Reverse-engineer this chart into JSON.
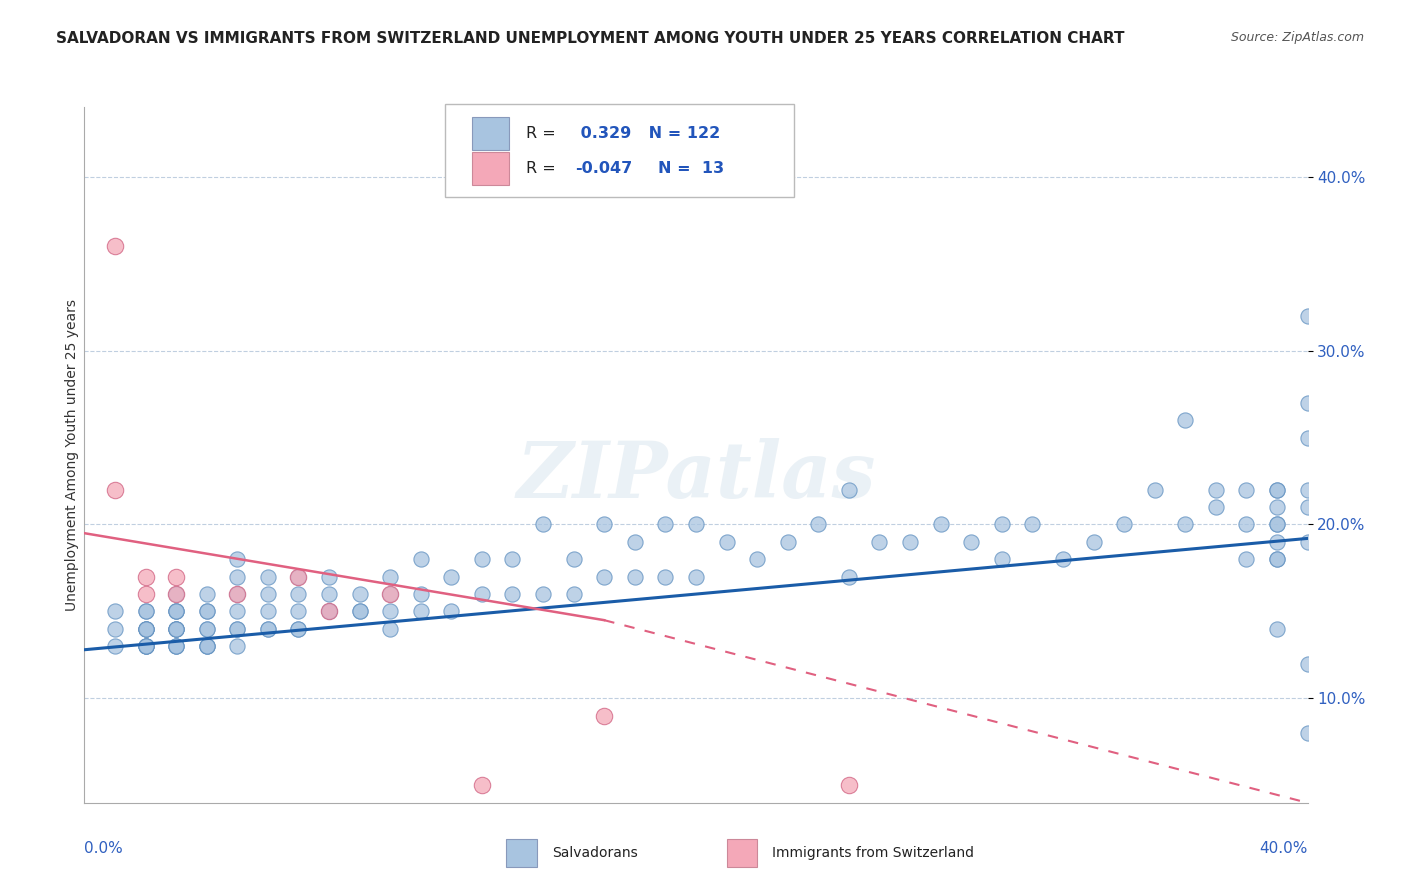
{
  "title": "SALVADORAN VS IMMIGRANTS FROM SWITZERLAND UNEMPLOYMENT AMONG YOUTH UNDER 25 YEARS CORRELATION CHART",
  "source": "Source: ZipAtlas.com",
  "ylabel": "Unemployment Among Youth under 25 years",
  "ytick_labels": [
    "10.0%",
    "20.0%",
    "30.0%",
    "40.0%"
  ],
  "ytick_values": [
    0.1,
    0.2,
    0.3,
    0.4
  ],
  "xlim": [
    0.0,
    0.4
  ],
  "ylim": [
    0.04,
    0.44
  ],
  "blue_R": 0.329,
  "blue_N": 122,
  "pink_R": -0.047,
  "pink_N": 13,
  "blue_color": "#a8c4e0",
  "blue_edge_color": "#6090c0",
  "pink_color": "#f4a8b8",
  "pink_edge_color": "#d06080",
  "blue_line_color": "#1a5ca8",
  "pink_line_color": "#e06080",
  "legend_label_blue": "Salvadorans",
  "legend_label_pink": "Immigrants from Switzerland",
  "watermark": "ZIPatlas",
  "background_color": "#ffffff",
  "blue_scatter_x": [
    0.01,
    0.01,
    0.01,
    0.02,
    0.02,
    0.02,
    0.02,
    0.02,
    0.02,
    0.02,
    0.02,
    0.02,
    0.02,
    0.03,
    0.03,
    0.03,
    0.03,
    0.03,
    0.03,
    0.03,
    0.03,
    0.03,
    0.03,
    0.03,
    0.04,
    0.04,
    0.04,
    0.04,
    0.04,
    0.04,
    0.04,
    0.04,
    0.05,
    0.05,
    0.05,
    0.05,
    0.05,
    0.05,
    0.05,
    0.06,
    0.06,
    0.06,
    0.06,
    0.06,
    0.07,
    0.07,
    0.07,
    0.07,
    0.07,
    0.08,
    0.08,
    0.08,
    0.08,
    0.09,
    0.09,
    0.09,
    0.1,
    0.1,
    0.1,
    0.1,
    0.11,
    0.11,
    0.11,
    0.12,
    0.12,
    0.13,
    0.13,
    0.14,
    0.14,
    0.15,
    0.15,
    0.16,
    0.16,
    0.17,
    0.17,
    0.18,
    0.18,
    0.19,
    0.19,
    0.2,
    0.2,
    0.21,
    0.22,
    0.23,
    0.24,
    0.25,
    0.25,
    0.26,
    0.27,
    0.28,
    0.29,
    0.3,
    0.3,
    0.31,
    0.32,
    0.33,
    0.34,
    0.35,
    0.36,
    0.36,
    0.37,
    0.37,
    0.38,
    0.38,
    0.38,
    0.39,
    0.39,
    0.39,
    0.39,
    0.39,
    0.39,
    0.39,
    0.39,
    0.39,
    0.4,
    0.4,
    0.4,
    0.4,
    0.4,
    0.4,
    0.4,
    0.4
  ],
  "blue_scatter_y": [
    0.15,
    0.14,
    0.13,
    0.15,
    0.15,
    0.14,
    0.14,
    0.13,
    0.13,
    0.13,
    0.13,
    0.14,
    0.14,
    0.14,
    0.15,
    0.14,
    0.14,
    0.14,
    0.13,
    0.13,
    0.13,
    0.15,
    0.15,
    0.16,
    0.15,
    0.14,
    0.14,
    0.13,
    0.13,
    0.13,
    0.15,
    0.16,
    0.15,
    0.14,
    0.14,
    0.13,
    0.16,
    0.17,
    0.18,
    0.15,
    0.14,
    0.14,
    0.16,
    0.17,
    0.14,
    0.14,
    0.15,
    0.16,
    0.17,
    0.15,
    0.15,
    0.16,
    0.17,
    0.15,
    0.15,
    0.16,
    0.14,
    0.15,
    0.16,
    0.17,
    0.15,
    0.16,
    0.18,
    0.15,
    0.17,
    0.16,
    0.18,
    0.16,
    0.18,
    0.16,
    0.2,
    0.16,
    0.18,
    0.17,
    0.2,
    0.17,
    0.19,
    0.17,
    0.2,
    0.17,
    0.2,
    0.19,
    0.18,
    0.19,
    0.2,
    0.17,
    0.22,
    0.19,
    0.19,
    0.2,
    0.19,
    0.18,
    0.2,
    0.2,
    0.18,
    0.19,
    0.2,
    0.22,
    0.2,
    0.26,
    0.21,
    0.22,
    0.18,
    0.2,
    0.22,
    0.18,
    0.19,
    0.2,
    0.21,
    0.22,
    0.14,
    0.18,
    0.2,
    0.22,
    0.19,
    0.21,
    0.25,
    0.27,
    0.22,
    0.08,
    0.12,
    0.32
  ],
  "pink_scatter_x": [
    0.01,
    0.01,
    0.02,
    0.02,
    0.03,
    0.03,
    0.05,
    0.07,
    0.08,
    0.1,
    0.13,
    0.17,
    0.25
  ],
  "pink_scatter_y": [
    0.36,
    0.22,
    0.17,
    0.16,
    0.17,
    0.16,
    0.16,
    0.17,
    0.15,
    0.16,
    0.05,
    0.09,
    0.05
  ],
  "blue_trend_x": [
    0.0,
    0.4
  ],
  "blue_trend_y": [
    0.128,
    0.192
  ],
  "pink_trend_x": [
    0.0,
    0.17
  ],
  "pink_trend_y": [
    0.195,
    0.145
  ]
}
